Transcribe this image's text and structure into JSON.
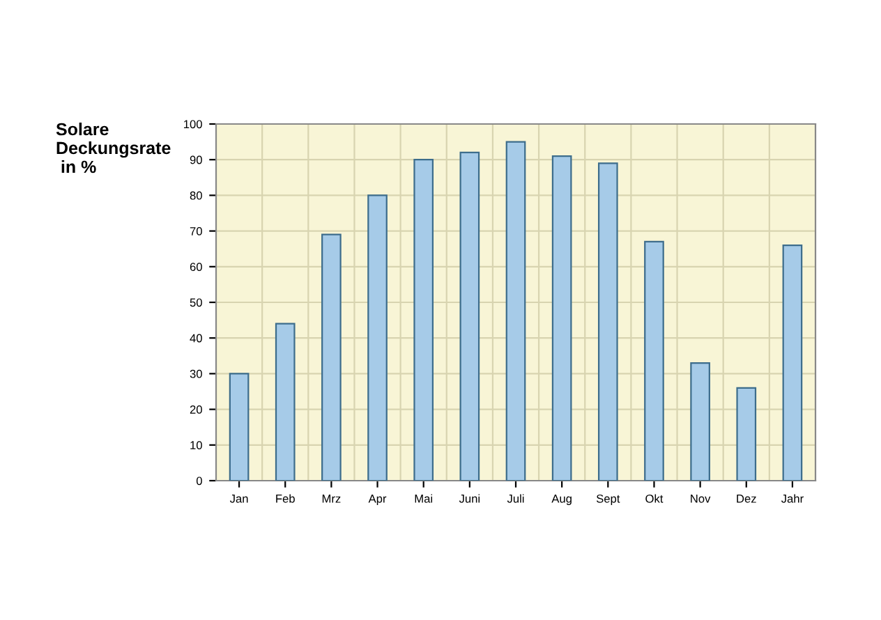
{
  "chart_data": {
    "type": "bar",
    "ylabel": "Solare\nDeckungsrate\n in %",
    "categories": [
      "Jan",
      "Feb",
      "Mrz",
      "Apr",
      "Mai",
      "Juni",
      "Juli",
      "Aug",
      "Sept",
      "Okt",
      "Nov",
      "Dez",
      "Jahr"
    ],
    "values": [
      30,
      44,
      69,
      80,
      90,
      92,
      95,
      91,
      89,
      67,
      33,
      26,
      66
    ],
    "color": "#a6cbe8",
    "ylim": [
      0,
      100
    ],
    "yticks": [
      0,
      10,
      20,
      30,
      40,
      50,
      60,
      70,
      80,
      90,
      100
    ],
    "grid": true
  }
}
